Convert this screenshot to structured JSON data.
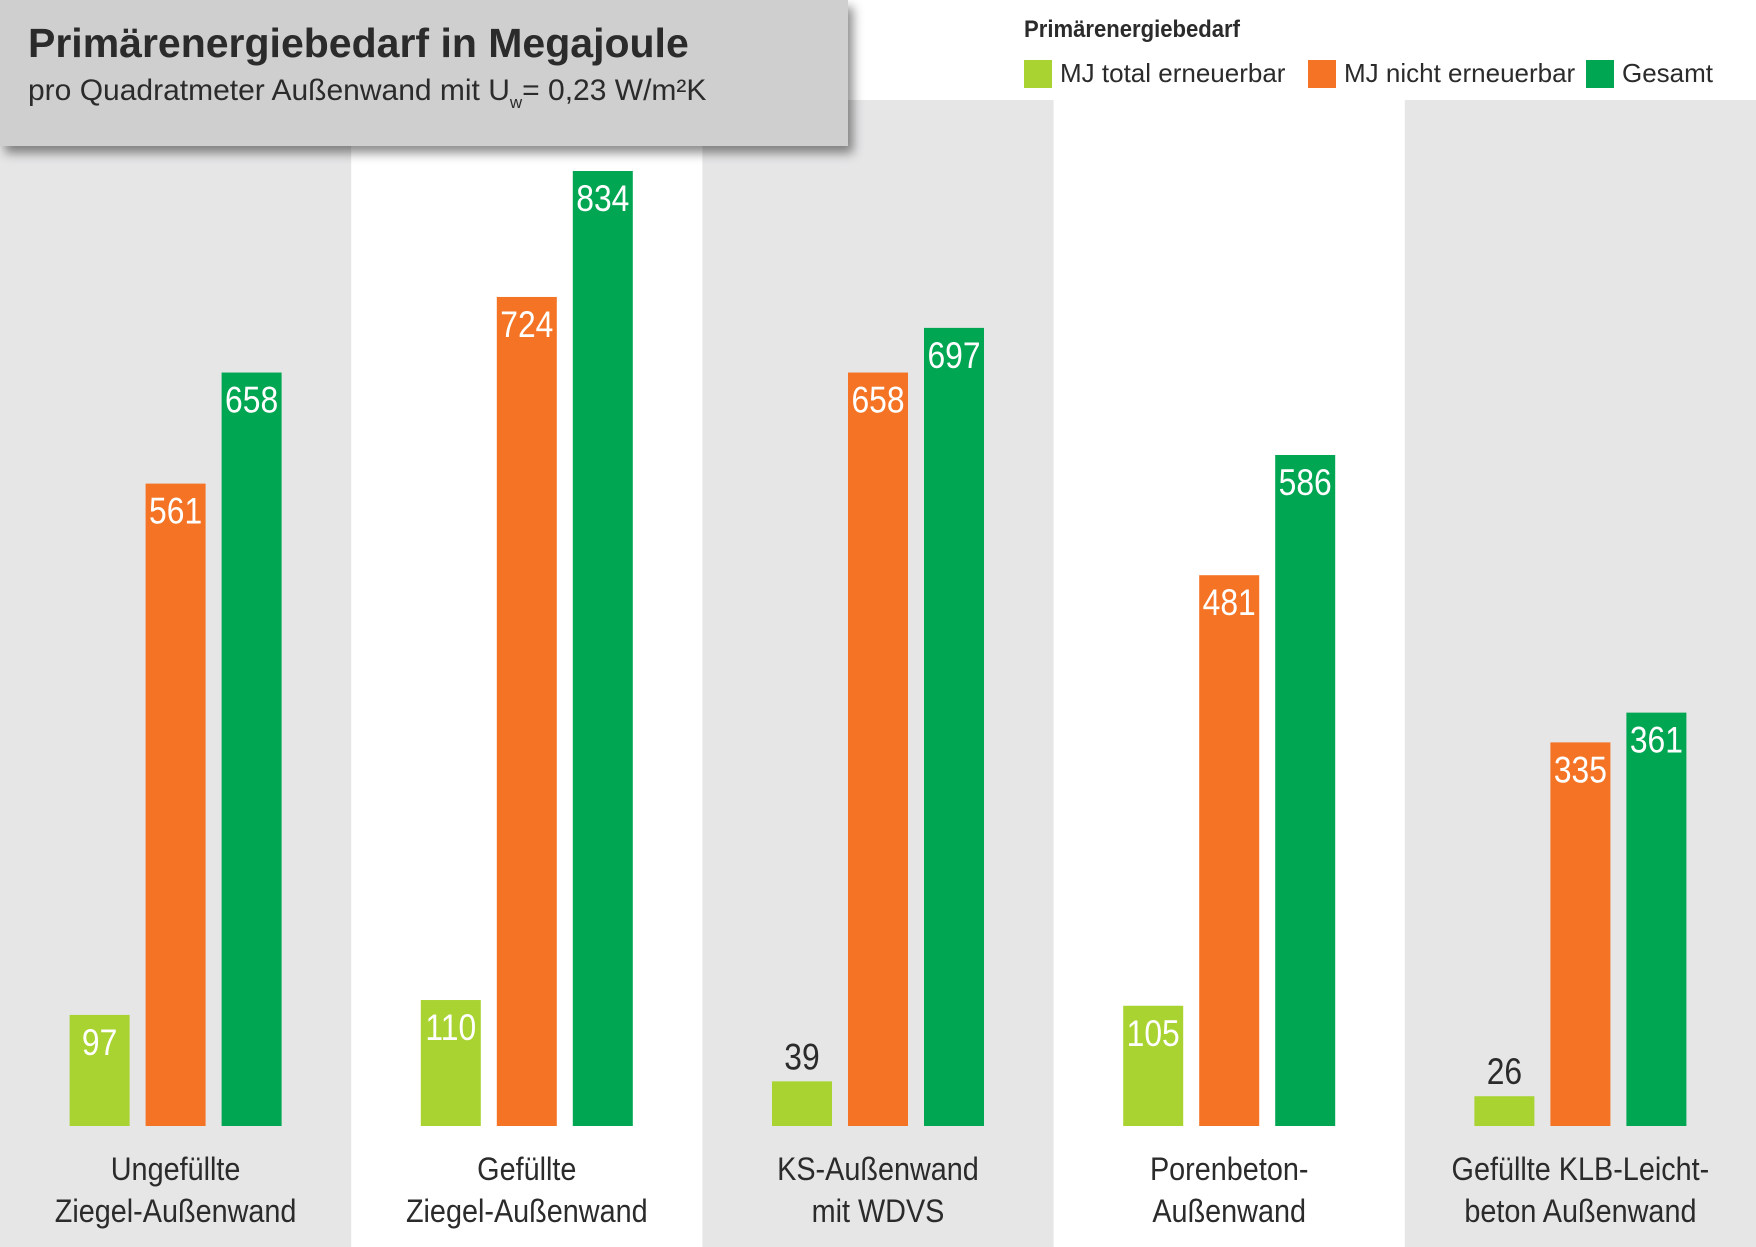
{
  "title": {
    "main": "Primärenergiebedarf in Megajoule",
    "sub_before": "pro Quadratmeter Außenwand mit U",
    "sub_subscript": "w",
    "sub_after": "= 0,23 W/m²K"
  },
  "legend": {
    "title": "Primärenergiebedarf",
    "placement": "top-right"
  },
  "colors": {
    "renewable": "#a8d331",
    "non_renewable": "#f47324",
    "total": "#00a651",
    "band": "#e6e6e7",
    "title_box": "#cfcfcf",
    "text": "#2b2b2b"
  },
  "chart_data": {
    "type": "bar",
    "categories": [
      [
        "Ungefüllte",
        "Ziegel-Außenwand"
      ],
      [
        "Gefüllte",
        "Ziegel-Außenwand"
      ],
      [
        "KS-Außenwand",
        "mit WDVS"
      ],
      [
        "Porenbeton-",
        "Außenwand"
      ],
      [
        "Gefüllte KLB-Leicht-",
        "beton Außenwand"
      ]
    ],
    "series": [
      {
        "name": "MJ total erneuerbar",
        "color": "#a8d331",
        "values": [
          97,
          110,
          39,
          105,
          26
        ]
      },
      {
        "name": "MJ nicht erneuerbar",
        "color": "#f47324",
        "values": [
          561,
          724,
          658,
          481,
          335
        ]
      },
      {
        "name": "Gesamt",
        "color": "#00a651",
        "values": [
          658,
          834,
          697,
          586,
          361
        ]
      }
    ],
    "ylim": [
      0,
      834
    ],
    "grid": false,
    "data_labels": true
  }
}
